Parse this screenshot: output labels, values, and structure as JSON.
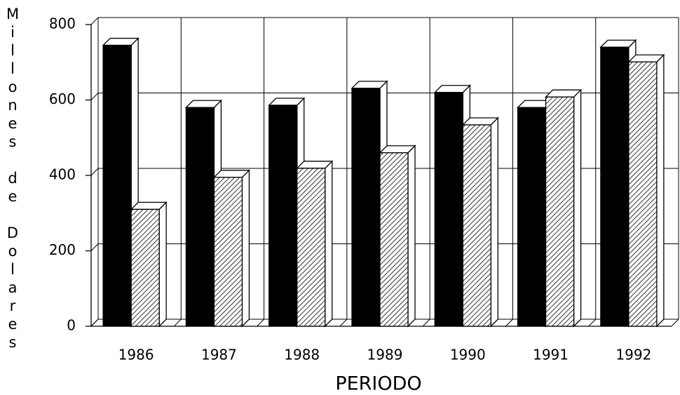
{
  "chart_data": {
    "type": "bar3d",
    "x_label": "PERIODO",
    "y_label": "Millones de Dolares",
    "categories": [
      "1986",
      "1987",
      "1988",
      "1989",
      "1990",
      "1991",
      "1992"
    ],
    "series": [
      {
        "color": "#000000",
        "hatch": false,
        "values": [
          745,
          580,
          586,
          631,
          620,
          580,
          740
        ]
      },
      {
        "color": "#000000",
        "hatch": true,
        "values": [
          310,
          395,
          419,
          460,
          534,
          608,
          701
        ]
      }
    ],
    "ylim": [
      0,
      800
    ],
    "yticks": [
      0,
      200,
      400,
      600,
      800
    ],
    "grid": true
  }
}
